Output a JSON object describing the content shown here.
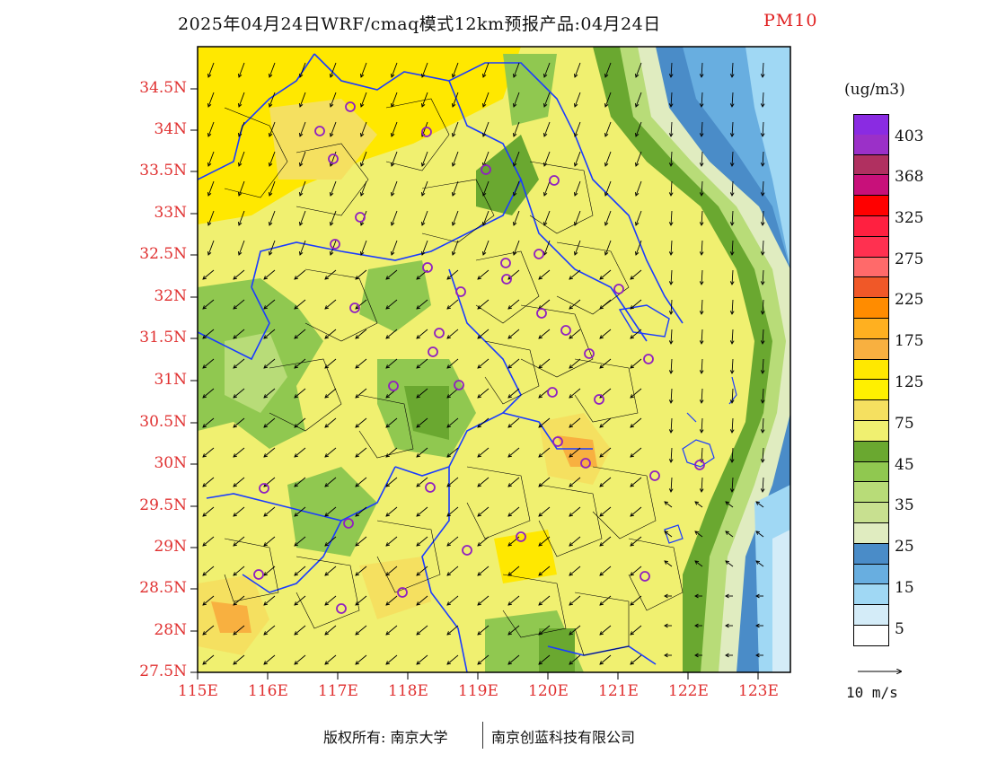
{
  "title": {
    "main": "2025年04月24日WRF/cmaq模式12km预报产品:04月24日",
    "variable": "PM10"
  },
  "axes": {
    "lat_labels": [
      "34.5N",
      "34N",
      "33.5N",
      "33N",
      "32.5N",
      "32N",
      "31.5N",
      "31N",
      "30.5N",
      "30N",
      "29.5N",
      "29N",
      "28.5N",
      "28N",
      "27.5N"
    ],
    "lon_labels": [
      "115E",
      "116E",
      "117E",
      "118E",
      "119E",
      "120E",
      "121E",
      "122E",
      "123E"
    ]
  },
  "legend": {
    "unit": "(ug/m3)",
    "labels": [
      "403",
      "368",
      "325",
      "275",
      "225",
      "175",
      "125",
      "75",
      "45",
      "35",
      "25",
      "15",
      "5"
    ],
    "colors": [
      "#8a2be2",
      "#9b30c8",
      "#b03060",
      "#c8107a",
      "#ff0000",
      "#ff2040",
      "#ff3050",
      "#ff6a6a",
      "#f05828",
      "#ff8c00",
      "#ffb020",
      "#f8b040",
      "#ffe800",
      "#fff000",
      "#f5e060",
      "#f0f070",
      "#6aa830",
      "#90c850",
      "#b8dc78",
      "#c8e090",
      "#e0ecc0",
      "#4a8cc8",
      "#68aee0",
      "#a0d8f4",
      "#d4ecf8",
      "#ffffff"
    ],
    "vector_reference": "10 m/s"
  },
  "footer": {
    "left": "版权所有: 南京大学",
    "right": "南京创蓝科技有限公司"
  },
  "map_colors": {
    "sea_deep": "#4a8cc8",
    "sea_mid": "#68aee0",
    "sea_light": "#a0d8f4",
    "land_base": "#f0f070",
    "land_yellow": "#ffe800",
    "land_orange": "#f5e060",
    "green": "#90c850",
    "dark_green": "#6aa830",
    "boundary": "#1a3cff"
  }
}
